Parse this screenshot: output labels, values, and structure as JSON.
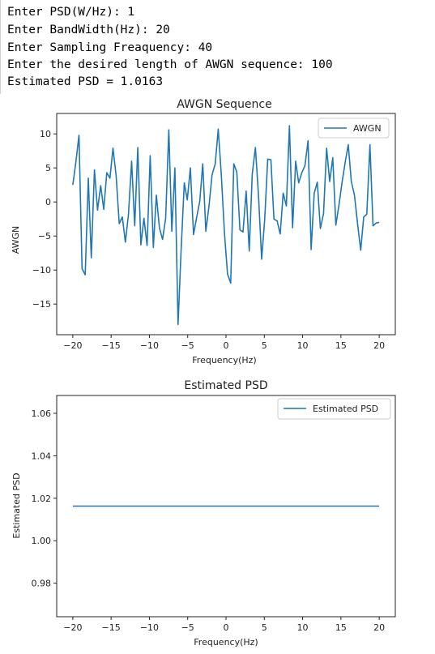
{
  "console": {
    "lines": [
      "Enter PSD(W/Hz): 1",
      "Enter BandWidth(Hz): 20",
      "Enter Sampling Freaquency: 40",
      "Enter the desired length of AWGN sequence: 100",
      "Estimated PSD = 1.0163"
    ]
  },
  "colors": {
    "line": "#1f77b4",
    "axes": "#222222",
    "background": "#ffffff"
  },
  "chart_data": [
    {
      "type": "line",
      "title": "AWGN Sequence",
      "xlabel": "Frequency(Hz)",
      "ylabel": "AWGN",
      "xlim": [
        -22.1,
        22.1
      ],
      "ylim": [
        -19.5,
        13
      ],
      "xticks": [
        -20,
        -15,
        -10,
        -5,
        0,
        5,
        10,
        15,
        20
      ],
      "yticks": [
        10,
        5,
        0,
        -5,
        -10,
        -15
      ],
      "xtick_labels": [
        "−20",
        "−15",
        "−10",
        "−5",
        "0",
        "5",
        "10",
        "15",
        "20"
      ],
      "ytick_labels": [
        "10",
        "5",
        "0",
        "−5",
        "−10",
        "−15"
      ],
      "legend": "top-right",
      "grid": false,
      "series": [
        {
          "name": "AWGN",
          "x": [
            -20.0,
            -19.6,
            -19.19,
            -18.79,
            -18.38,
            -17.98,
            -17.58,
            -17.17,
            -16.77,
            -16.36,
            -15.96,
            -15.56,
            -15.15,
            -14.75,
            -14.34,
            -13.94,
            -13.54,
            -13.13,
            -12.73,
            -12.32,
            -11.92,
            -11.52,
            -11.11,
            -10.71,
            -10.3,
            -9.9,
            -9.49,
            -9.09,
            -8.69,
            -8.28,
            -7.88,
            -7.47,
            -7.07,
            -6.67,
            -6.26,
            -5.86,
            -5.45,
            -5.05,
            -4.65,
            -4.24,
            -3.84,
            -3.43,
            -3.03,
            -2.63,
            -2.22,
            -1.82,
            -1.41,
            -1.01,
            -0.61,
            -0.2,
            0.2,
            0.61,
            1.01,
            1.41,
            1.82,
            2.22,
            2.63,
            3.03,
            3.43,
            3.84,
            4.24,
            4.65,
            5.05,
            5.45,
            5.86,
            6.26,
            6.67,
            7.07,
            7.47,
            7.88,
            8.28,
            8.69,
            9.09,
            9.49,
            9.9,
            10.3,
            10.71,
            11.11,
            11.52,
            11.92,
            12.32,
            12.73,
            13.13,
            13.54,
            13.94,
            14.34,
            14.75,
            15.15,
            15.56,
            15.96,
            16.36,
            16.77,
            17.17,
            17.58,
            17.98,
            18.38,
            18.79,
            19.19,
            19.6,
            20.0
          ],
          "y": [
            2.5,
            5.8,
            9.8,
            -9.8,
            -10.7,
            3.5,
            -8.2,
            4.7,
            -1.2,
            2.4,
            -1.1,
            4.3,
            3.5,
            7.9,
            3.8,
            -3.2,
            -2.2,
            -5.9,
            -1.8,
            6.0,
            -3.5,
            8.0,
            -6.3,
            -2.4,
            -6.4,
            6.8,
            -6.7,
            1.0,
            -3.8,
            -5.5,
            -2.4,
            10.6,
            -4.3,
            5.0,
            -18.0,
            -7.0,
            2.8,
            0.3,
            5.0,
            -4.8,
            -2.3,
            0.1,
            5.6,
            -4.3,
            -0.6,
            4.0,
            5.6,
            10.7,
            4.0,
            -4.6,
            -10.6,
            -11.9,
            5.6,
            4.4,
            -4.1,
            -4.4,
            1.6,
            -7.2,
            4.1,
            8.0,
            1.0,
            -8.4,
            -2.5,
            6.3,
            6.2,
            -2.5,
            -2.8,
            -4.7,
            1.3,
            -0.6,
            11.2,
            -3.8,
            6.0,
            2.8,
            4.3,
            5.3,
            9.0,
            -7.0,
            1.3,
            2.9,
            -3.9,
            -1.7,
            7.9,
            3.0,
            6.5,
            -3.4,
            -0.4,
            2.9,
            5.9,
            8.4,
            3.0,
            1.0,
            -3.2,
            -7.1,
            -2.2,
            -1.8,
            8.4,
            -3.5,
            -3.1,
            -3.0
          ]
        }
      ]
    },
    {
      "type": "line",
      "title": "Estimated PSD",
      "xlabel": "Frequency(Hz)",
      "ylabel": "Estimated PSD",
      "xlim": [
        -22.1,
        22.1
      ],
      "ylim": [
        0.9642,
        1.0684
      ],
      "xticks": [
        -20,
        -15,
        -10,
        -5,
        0,
        5,
        10,
        15,
        20
      ],
      "yticks": [
        1.06,
        1.04,
        1.02,
        1.0,
        0.98
      ],
      "xtick_labels": [
        "−20",
        "−15",
        "−10",
        "−5",
        "0",
        "5",
        "10",
        "15",
        "20"
      ],
      "ytick_labels": [
        "1.06",
        "1.04",
        "1.02",
        "1.00",
        "0.98"
      ],
      "legend": "top-right",
      "grid": false,
      "series": [
        {
          "name": "Estimated PSD",
          "x": [
            -20,
            20
          ],
          "y": [
            1.0163,
            1.0163
          ]
        }
      ]
    }
  ]
}
